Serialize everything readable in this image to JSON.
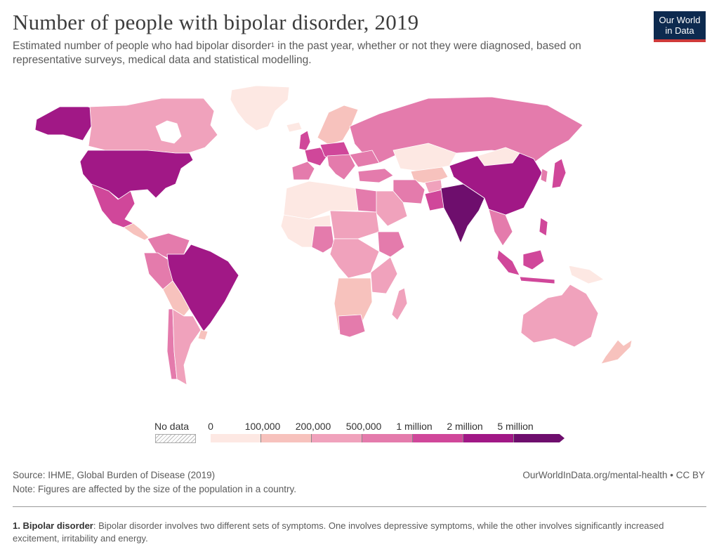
{
  "header": {
    "title": "Number of people with bipolar disorder, 2019",
    "subtitle_pre": "Estimated number of people who had bipolar disorder",
    "subtitle_sup": "1",
    "subtitle_post": " in the past year, whether or not they were diagnosed, based on representative surveys, medical data and statistical modelling."
  },
  "logo": {
    "line1": "Our World",
    "line2": "in Data",
    "bg": "#0d2a4f",
    "accent": "#cf3a3a"
  },
  "legend": {
    "no_data_label": "No data",
    "bins": [
      {
        "label": "0",
        "color": "#fde8e3"
      },
      {
        "label": "100,000",
        "color": "#f7c2bd"
      },
      {
        "label": "200,000",
        "color": "#f0a2bc"
      },
      {
        "label": "500,000",
        "color": "#e47bac"
      },
      {
        "label": "1 million",
        "color": "#d0479a"
      },
      {
        "label": "2 million",
        "color": "#a11886"
      },
      {
        "label": "5 million",
        "color": "#6e0e6d"
      }
    ]
  },
  "chart_data": {
    "type": "choropleth",
    "metric": "Number of people with bipolar disorder",
    "year": 2019,
    "bins": [
      "0",
      "100,000",
      "200,000",
      "500,000",
      "1 million",
      "2 million",
      "5 million"
    ],
    "regions": [
      {
        "name": "India",
        "bin": "5 million"
      },
      {
        "name": "China",
        "bin": "2 million"
      },
      {
        "name": "United States",
        "bin": "2 million"
      },
      {
        "name": "Brazil",
        "bin": "2 million"
      },
      {
        "name": "Mexico",
        "bin": "1 million"
      },
      {
        "name": "Indonesia",
        "bin": "1 million"
      },
      {
        "name": "Russia",
        "bin": "500,000"
      },
      {
        "name": "Japan",
        "bin": "500,000"
      },
      {
        "name": "Iran",
        "bin": "500,000"
      },
      {
        "name": "Pakistan",
        "bin": "500,000"
      },
      {
        "name": "Canada",
        "bin": "200,000"
      },
      {
        "name": "Australia",
        "bin": "200,000"
      },
      {
        "name": "Argentina",
        "bin": "200,000"
      },
      {
        "name": "Nigeria",
        "bin": "200,000"
      },
      {
        "name": "Egypt",
        "bin": "200,000"
      },
      {
        "name": "Ethiopia",
        "bin": "200,000"
      },
      {
        "name": "Kazakhstan",
        "bin": "100,000"
      },
      {
        "name": "Mongolia",
        "bin": "0"
      },
      {
        "name": "Greenland",
        "bin": "0"
      }
    ]
  },
  "footer": {
    "source": "Source: IHME, Global Burden of Disease (2019)",
    "note": "Note: Figures are affected by the size of the population in a country.",
    "credit": "OurWorldInData.org/mental-health • CC BY"
  },
  "footnote": {
    "term": "1. Bipolar disorder",
    "text": ": Bipolar disorder involves two different sets of symptoms. One involves depressive symptoms, while the other involves significantly increased excitement, irritability and energy."
  }
}
